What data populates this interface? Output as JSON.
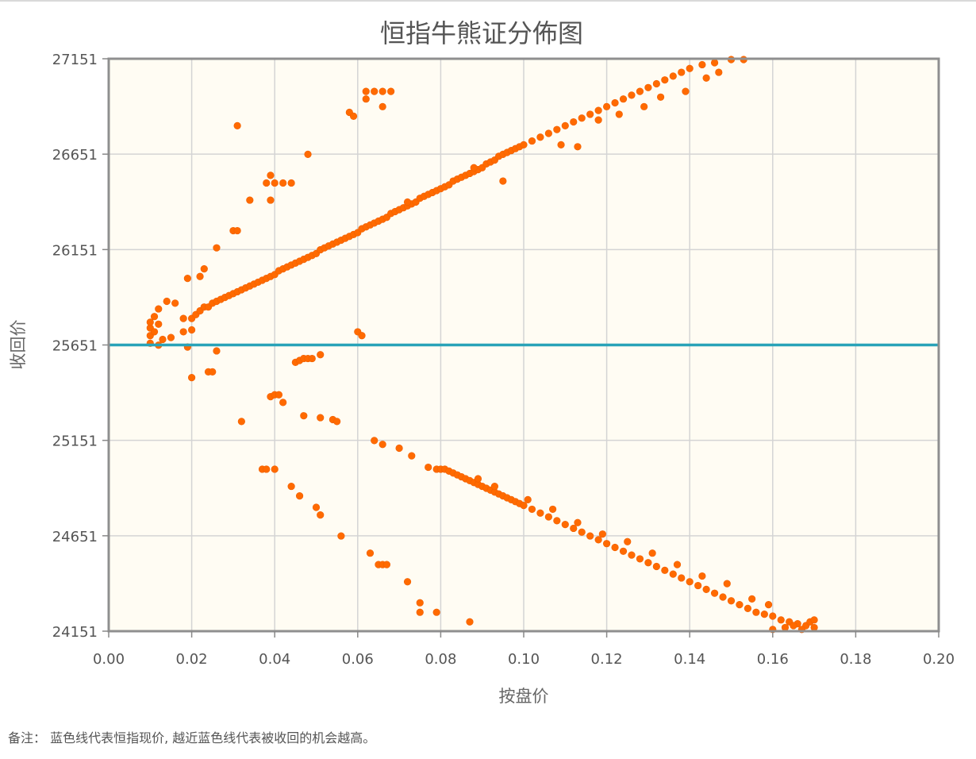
{
  "chart_data": {
    "type": "scatter",
    "title": "恒指牛熊证分佈图",
    "xlabel": "按盘价",
    "ylabel": "收回价",
    "xlim": [
      0,
      0.2
    ],
    "ylim": [
      24151,
      27151
    ],
    "x_ticks": [
      "0.00",
      "0.02",
      "0.04",
      "0.06",
      "0.08",
      "0.10",
      "0.12",
      "0.14",
      "0.16",
      "0.18",
      "0.20"
    ],
    "y_ticks": [
      "27151",
      "26651",
      "26151",
      "25651",
      "25151",
      "24651",
      "24151"
    ],
    "grid": true,
    "reference_line": {
      "value": 25651,
      "color": "#2aa3b8"
    },
    "point_color": "#ff6a00",
    "plot_background": "#fffcf3",
    "series": [
      {
        "points_bull": [
          [
            0.01,
            25660
          ],
          [
            0.01,
            25700
          ],
          [
            0.01,
            25740
          ],
          [
            0.01,
            25770
          ],
          [
            0.011,
            25720
          ],
          [
            0.012,
            25760
          ],
          [
            0.011,
            25800
          ],
          [
            0.012,
            25840
          ],
          [
            0.014,
            25880
          ],
          [
            0.016,
            25870
          ],
          [
            0.018,
            25790
          ],
          [
            0.02,
            25790
          ],
          [
            0.021,
            25810
          ],
          [
            0.022,
            25830
          ],
          [
            0.023,
            25850
          ],
          [
            0.024,
            25850
          ],
          [
            0.025,
            25870
          ],
          [
            0.026,
            25880
          ],
          [
            0.027,
            25890
          ],
          [
            0.028,
            25900
          ],
          [
            0.029,
            25910
          ],
          [
            0.03,
            25920
          ],
          [
            0.031,
            25930
          ],
          [
            0.032,
            25940
          ],
          [
            0.033,
            25950
          ],
          [
            0.034,
            25960
          ],
          [
            0.035,
            25970
          ],
          [
            0.036,
            25980
          ],
          [
            0.037,
            25990
          ],
          [
            0.038,
            26000
          ],
          [
            0.039,
            26010
          ],
          [
            0.04,
            26020
          ],
          [
            0.041,
            26040
          ],
          [
            0.042,
            26050
          ],
          [
            0.043,
            26060
          ],
          [
            0.044,
            26070
          ],
          [
            0.045,
            26080
          ],
          [
            0.046,
            26090
          ],
          [
            0.047,
            26100
          ],
          [
            0.048,
            26110
          ],
          [
            0.049,
            26120
          ],
          [
            0.05,
            26130
          ],
          [
            0.051,
            26150
          ],
          [
            0.052,
            26160
          ],
          [
            0.053,
            26170
          ],
          [
            0.054,
            26180
          ],
          [
            0.055,
            26190
          ],
          [
            0.056,
            26200
          ],
          [
            0.057,
            26210
          ],
          [
            0.058,
            26220
          ],
          [
            0.059,
            26230
          ],
          [
            0.06,
            26240
          ],
          [
            0.061,
            26260
          ],
          [
            0.062,
            26270
          ],
          [
            0.063,
            26280
          ],
          [
            0.064,
            26290
          ],
          [
            0.065,
            26300
          ],
          [
            0.066,
            26310
          ],
          [
            0.067,
            26320
          ],
          [
            0.068,
            26340
          ],
          [
            0.069,
            26350
          ],
          [
            0.07,
            26360
          ],
          [
            0.071,
            26370
          ],
          [
            0.072,
            26380
          ],
          [
            0.073,
            26390
          ],
          [
            0.074,
            26400
          ],
          [
            0.075,
            26420
          ],
          [
            0.076,
            26430
          ],
          [
            0.077,
            26440
          ],
          [
            0.078,
            26450
          ],
          [
            0.079,
            26460
          ],
          [
            0.08,
            26470
          ],
          [
            0.081,
            26480
          ],
          [
            0.082,
            26490
          ],
          [
            0.083,
            26510
          ],
          [
            0.084,
            26520
          ],
          [
            0.085,
            26530
          ],
          [
            0.086,
            26540
          ],
          [
            0.087,
            26550
          ],
          [
            0.088,
            26560
          ],
          [
            0.089,
            26570
          ],
          [
            0.09,
            26580
          ],
          [
            0.091,
            26600
          ],
          [
            0.092,
            26610
          ],
          [
            0.093,
            26620
          ],
          [
            0.094,
            26640
          ],
          [
            0.095,
            26650
          ],
          [
            0.096,
            26660
          ],
          [
            0.097,
            26670
          ],
          [
            0.098,
            26680
          ],
          [
            0.099,
            26690
          ],
          [
            0.1,
            26700
          ],
          [
            0.102,
            26720
          ],
          [
            0.104,
            26740
          ],
          [
            0.106,
            26760
          ],
          [
            0.108,
            26780
          ],
          [
            0.11,
            26800
          ],
          [
            0.112,
            26820
          ],
          [
            0.114,
            26840
          ],
          [
            0.116,
            26860
          ],
          [
            0.118,
            26880
          ],
          [
            0.12,
            26900
          ],
          [
            0.122,
            26920
          ],
          [
            0.124,
            26940
          ],
          [
            0.126,
            26960
          ],
          [
            0.128,
            26980
          ],
          [
            0.13,
            27000
          ],
          [
            0.132,
            27020
          ],
          [
            0.134,
            27040
          ],
          [
            0.136,
            27060
          ],
          [
            0.138,
            27080
          ],
          [
            0.14,
            27100
          ],
          [
            0.143,
            27120
          ],
          [
            0.146,
            27130
          ],
          [
            0.15,
            27150
          ],
          [
            0.153,
            27151
          ],
          [
            0.012,
            25650
          ],
          [
            0.013,
            25680
          ],
          [
            0.015,
            25690
          ],
          [
            0.019,
            25640
          ],
          [
            0.018,
            25720
          ],
          [
            0.02,
            25730
          ],
          [
            0.019,
            26000
          ],
          [
            0.022,
            26010
          ],
          [
            0.023,
            26050
          ],
          [
            0.026,
            26160
          ],
          [
            0.03,
            26250
          ],
          [
            0.031,
            26250
          ],
          [
            0.034,
            26410
          ],
          [
            0.038,
            26500
          ],
          [
            0.039,
            26540
          ],
          [
            0.04,
            26500
          ],
          [
            0.042,
            26500
          ],
          [
            0.044,
            26500
          ],
          [
            0.048,
            26650
          ],
          [
            0.039,
            26410
          ],
          [
            0.031,
            26800
          ],
          [
            0.058,
            26870
          ],
          [
            0.059,
            26850
          ],
          [
            0.062,
            26980
          ],
          [
            0.064,
            26980
          ],
          [
            0.066,
            26980
          ],
          [
            0.068,
            26980
          ],
          [
            0.062,
            26940
          ],
          [
            0.066,
            26900
          ],
          [
            0.06,
            25720
          ],
          [
            0.061,
            25700
          ],
          [
            0.072,
            26400
          ],
          [
            0.088,
            26580
          ],
          [
            0.095,
            26510
          ],
          [
            0.109,
            26700
          ],
          [
            0.113,
            26690
          ],
          [
            0.118,
            26830
          ],
          [
            0.123,
            26860
          ],
          [
            0.129,
            26900
          ],
          [
            0.133,
            26950
          ],
          [
            0.139,
            26980
          ],
          [
            0.144,
            27050
          ],
          [
            0.147,
            27080
          ]
        ]
      },
      {
        "points_bear": [
          [
            0.02,
            25480
          ],
          [
            0.024,
            25510
          ],
          [
            0.025,
            25510
          ],
          [
            0.026,
            25620
          ],
          [
            0.032,
            25250
          ],
          [
            0.039,
            25380
          ],
          [
            0.04,
            25390
          ],
          [
            0.041,
            25390
          ],
          [
            0.042,
            25350
          ],
          [
            0.047,
            25280
          ],
          [
            0.051,
            25270
          ],
          [
            0.054,
            25260
          ],
          [
            0.055,
            25250
          ],
          [
            0.045,
            25560
          ],
          [
            0.046,
            25570
          ],
          [
            0.047,
            25580
          ],
          [
            0.048,
            25580
          ],
          [
            0.049,
            25580
          ],
          [
            0.051,
            25600
          ],
          [
            0.037,
            25000
          ],
          [
            0.038,
            25000
          ],
          [
            0.04,
            25000
          ],
          [
            0.044,
            24910
          ],
          [
            0.046,
            24860
          ],
          [
            0.05,
            24800
          ],
          [
            0.051,
            24760
          ],
          [
            0.056,
            24650
          ],
          [
            0.063,
            24560
          ],
          [
            0.065,
            24500
          ],
          [
            0.066,
            24500
          ],
          [
            0.067,
            24500
          ],
          [
            0.072,
            24410
          ],
          [
            0.075,
            24300
          ],
          [
            0.075,
            24250
          ],
          [
            0.079,
            24250
          ],
          [
            0.087,
            24200
          ],
          [
            0.064,
            25150
          ],
          [
            0.066,
            25130
          ],
          [
            0.07,
            25110
          ],
          [
            0.073,
            25070
          ],
          [
            0.077,
            25010
          ],
          [
            0.079,
            25000
          ],
          [
            0.08,
            25000
          ],
          [
            0.081,
            25000
          ],
          [
            0.082,
            24990
          ],
          [
            0.083,
            24980
          ],
          [
            0.084,
            24970
          ],
          [
            0.085,
            24960
          ],
          [
            0.086,
            24950
          ],
          [
            0.087,
            24940
          ],
          [
            0.088,
            24930
          ],
          [
            0.089,
            24920
          ],
          [
            0.09,
            24910
          ],
          [
            0.091,
            24900
          ],
          [
            0.092,
            24890
          ],
          [
            0.093,
            24880
          ],
          [
            0.094,
            24870
          ],
          [
            0.095,
            24860
          ],
          [
            0.096,
            24850
          ],
          [
            0.097,
            24840
          ],
          [
            0.098,
            24830
          ],
          [
            0.099,
            24820
          ],
          [
            0.1,
            24810
          ],
          [
            0.102,
            24790
          ],
          [
            0.104,
            24770
          ],
          [
            0.106,
            24750
          ],
          [
            0.108,
            24730
          ],
          [
            0.11,
            24710
          ],
          [
            0.112,
            24690
          ],
          [
            0.114,
            24670
          ],
          [
            0.116,
            24650
          ],
          [
            0.118,
            24630
          ],
          [
            0.12,
            24610
          ],
          [
            0.122,
            24590
          ],
          [
            0.124,
            24570
          ],
          [
            0.126,
            24550
          ],
          [
            0.128,
            24530
          ],
          [
            0.13,
            24510
          ],
          [
            0.132,
            24490
          ],
          [
            0.134,
            24470
          ],
          [
            0.136,
            24450
          ],
          [
            0.138,
            24430
          ],
          [
            0.14,
            24410
          ],
          [
            0.142,
            24390
          ],
          [
            0.144,
            24370
          ],
          [
            0.146,
            24350
          ],
          [
            0.148,
            24330
          ],
          [
            0.15,
            24310
          ],
          [
            0.152,
            24290
          ],
          [
            0.154,
            24270
          ],
          [
            0.156,
            24250
          ],
          [
            0.158,
            24240
          ],
          [
            0.16,
            24230
          ],
          [
            0.162,
            24210
          ],
          [
            0.164,
            24200
          ],
          [
            0.166,
            24190
          ],
          [
            0.168,
            24180
          ],
          [
            0.17,
            24170
          ],
          [
            0.16,
            24160
          ],
          [
            0.163,
            24170
          ],
          [
            0.165,
            24180
          ],
          [
            0.167,
            24160
          ],
          [
            0.169,
            24200
          ],
          [
            0.17,
            24210
          ],
          [
            0.089,
            24950
          ],
          [
            0.093,
            24910
          ],
          [
            0.101,
            24840
          ],
          [
            0.107,
            24790
          ],
          [
            0.113,
            24720
          ],
          [
            0.119,
            24660
          ],
          [
            0.125,
            24620
          ],
          [
            0.131,
            24560
          ],
          [
            0.137,
            24500
          ],
          [
            0.143,
            24440
          ],
          [
            0.149,
            24400
          ],
          [
            0.155,
            24320
          ],
          [
            0.159,
            24290
          ]
        ]
      }
    ]
  },
  "note": {
    "label": "备注：",
    "text": "蓝色线代表恒指现价, 越近蓝色线代表被收回的机会越高。"
  }
}
